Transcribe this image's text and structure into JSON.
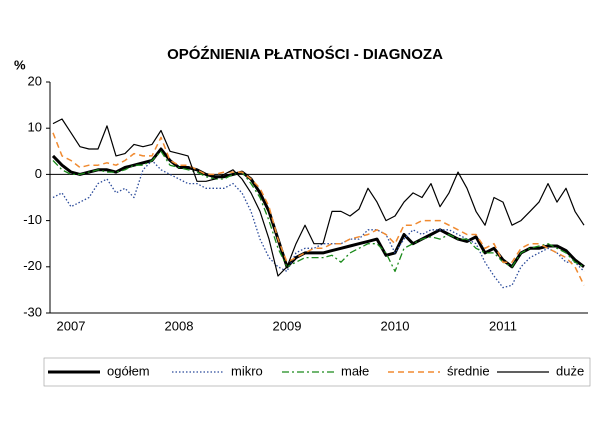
{
  "chart_data": {
    "type": "line",
    "title": "OPÓŹNIENIA PŁATNOŚCI - DIAGNOZA",
    "ylabel": "%",
    "categories": [
      null,
      null,
      "2007",
      null,
      null,
      null,
      null,
      null,
      null,
      null,
      null,
      null,
      null,
      null,
      "2008",
      null,
      null,
      null,
      null,
      null,
      null,
      null,
      null,
      null,
      null,
      null,
      "2009",
      null,
      null,
      null,
      null,
      null,
      null,
      null,
      null,
      null,
      null,
      null,
      "2010",
      null,
      null,
      null,
      null,
      null,
      null,
      null,
      null,
      null,
      null,
      null,
      "2011",
      null,
      null,
      null,
      null,
      null,
      null,
      null,
      null,
      null
    ],
    "ylim": [
      -30,
      20
    ],
    "yticks": [
      20,
      10,
      0,
      -10,
      -20,
      -30
    ],
    "grid": false,
    "legend": "bottom",
    "series": [
      {
        "name": "ogółem",
        "color": "#000000",
        "width": 3,
        "dash": "solid",
        "values": [
          4,
          2,
          0.5,
          0,
          0.5,
          1,
          1,
          0.5,
          1.5,
          2,
          2.5,
          3,
          5.5,
          3,
          1.5,
          1.5,
          1,
          0,
          -0.5,
          -0.5,
          0,
          0.5,
          -1,
          -4,
          -8,
          -14,
          -20,
          -18,
          -17,
          -17,
          -17,
          -16.5,
          -16,
          -15.5,
          -15,
          -14.5,
          -14,
          -17.5,
          -17,
          -13,
          -15,
          -14,
          -13,
          -12,
          -13,
          -14,
          -14.5,
          -13.5,
          -17,
          -16,
          -18.5,
          -20,
          -17,
          -16,
          -16,
          -15.5,
          -15.5,
          -16.5,
          -18.5,
          -20
        ]
      },
      {
        "name": "mikro",
        "color": "#2a4a9a",
        "width": 1.3,
        "dash": "dotted",
        "values": [
          -5,
          -4,
          -7,
          -6,
          -5,
          -2,
          -1,
          -4,
          -3,
          -5,
          1,
          3,
          1,
          0,
          -1,
          -2,
          -2,
          -3,
          -3,
          -3,
          -2,
          -4,
          -8,
          -14,
          -18,
          -20,
          -21,
          -17,
          -16,
          -16,
          -15,
          -15,
          -15,
          -14,
          -14,
          -12,
          -12,
          -13,
          -17,
          -14,
          -12,
          -13,
          -12,
          -12,
          -12,
          -13,
          -14,
          -15,
          -19,
          -22,
          -24.5,
          -24,
          -20,
          -18,
          -17,
          -16,
          -17,
          -19,
          -19,
          -21
        ]
      },
      {
        "name": "małe",
        "color": "#1a8a1a",
        "width": 1.3,
        "dash": "dashdot",
        "values": [
          3,
          1,
          0,
          0,
          0.5,
          1,
          0.5,
          0.5,
          1,
          2,
          2,
          3,
          5,
          2,
          1.5,
          1,
          0.5,
          -0.5,
          -1,
          -1,
          0,
          0.5,
          -2,
          -5,
          -10,
          -16,
          -20,
          -19,
          -18,
          -18,
          -18,
          -17.5,
          -19,
          -17,
          -16,
          -15,
          -15,
          -17,
          -21,
          -16,
          -15,
          -14,
          -13.5,
          -14,
          -13,
          -14,
          -14,
          -16,
          -17,
          -17,
          -19,
          -20,
          -17,
          -16,
          -15.5,
          -15,
          -16,
          -17,
          -19,
          -20
        ]
      },
      {
        "name": "średnie",
        "color": "#f08a30",
        "width": 1.5,
        "dash": "dashed",
        "values": [
          9,
          4,
          3,
          1.5,
          2,
          2,
          2.5,
          2,
          3,
          4.5,
          4,
          4,
          8,
          3,
          2,
          2,
          1,
          0,
          0,
          0.5,
          0.5,
          0.5,
          -1,
          -3,
          -7,
          -14,
          -19,
          -18,
          -17,
          -16,
          -16,
          -15,
          -15,
          -14,
          -13.5,
          -13,
          -12,
          -13,
          -15,
          -11,
          -11,
          -10,
          -10,
          -10,
          -11,
          -12,
          -13,
          -13,
          -16,
          -15,
          -19,
          -19,
          -16,
          -15,
          -15,
          -16,
          -17,
          -18,
          -20,
          -24
        ]
      },
      {
        "name": "duże",
        "color": "#000000",
        "width": 1.2,
        "dash": "solid",
        "values": [
          11,
          12,
          9,
          6,
          5.5,
          5.5,
          10.5,
          4,
          4.5,
          6.5,
          6,
          6.5,
          9.5,
          5,
          4.5,
          4,
          -1.5,
          -1.5,
          -1,
          0,
          1,
          -1,
          -4,
          -8,
          -14,
          -22,
          -20,
          -15,
          -11,
          -15,
          -15,
          -8,
          -8,
          -9,
          -7.5,
          -3,
          -6,
          -10,
          -9,
          -6,
          -4,
          -5,
          -2,
          -7,
          -4,
          0.5,
          -3,
          -8,
          -11,
          -5,
          -6,
          -11,
          -10,
          -8,
          -6,
          -2,
          -6,
          -3,
          -8,
          -11
        ]
      }
    ]
  }
}
